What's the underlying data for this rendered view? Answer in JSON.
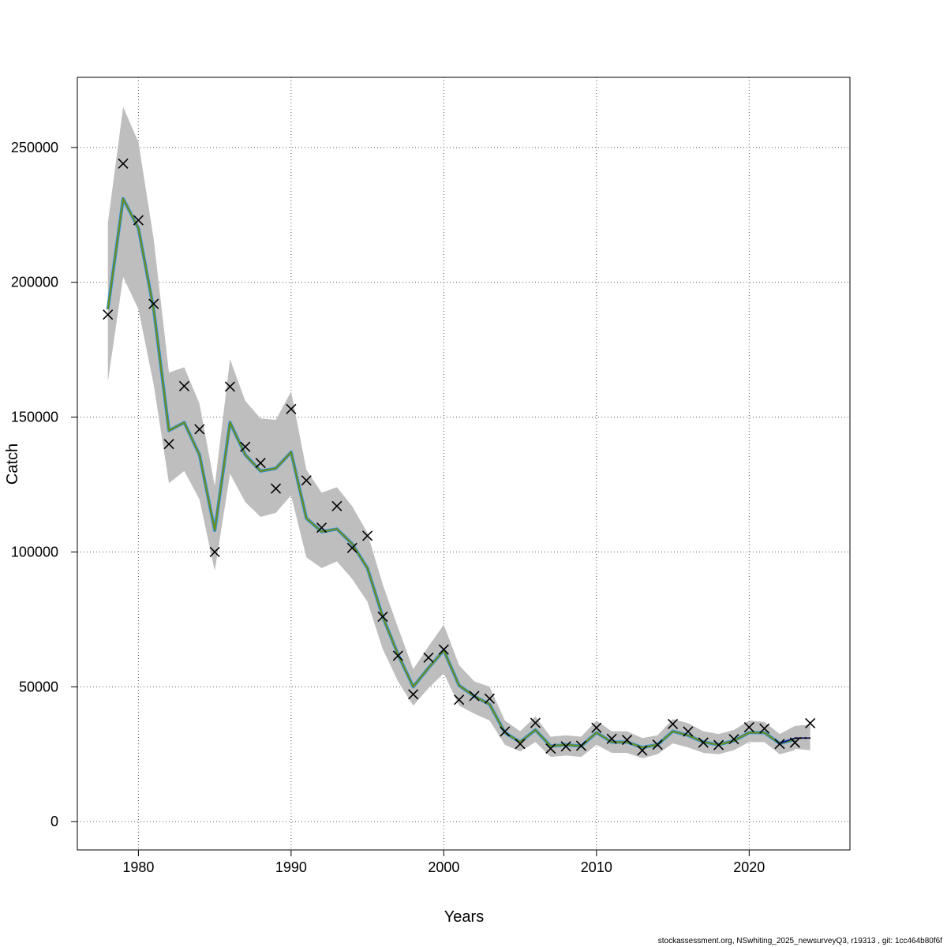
{
  "chart_data": {
    "type": "line",
    "xlabel": "Years",
    "ylabel": "Catch",
    "xlim": [
      1976,
      2026.6
    ],
    "ylim": [
      -10500,
      276000
    ],
    "x_ticks": [
      1980,
      1990,
      2000,
      2010,
      2020
    ],
    "y_ticks": [
      0,
      50000,
      100000,
      150000,
      200000,
      250000
    ],
    "grid": true,
    "years": [
      1978,
      1979,
      1980,
      1981,
      1982,
      1983,
      1984,
      1985,
      1986,
      1987,
      1988,
      1989,
      1990,
      1991,
      1992,
      1993,
      1994,
      1995,
      1996,
      1997,
      1998,
      1999,
      2000,
      2001,
      2002,
      2003,
      2004,
      2005,
      2006,
      2007,
      2008,
      2009,
      2010,
      2011,
      2012,
      2013,
      2014,
      2015,
      2016,
      2017,
      2018,
      2019,
      2020,
      2021,
      2022,
      2023,
      2024
    ],
    "observed": [
      188000,
      244000,
      223000,
      192000,
      140000,
      161500,
      145500,
      100000,
      161300,
      139000,
      133000,
      123500,
      153000,
      126500,
      109000,
      117000,
      101500,
      106000,
      76000,
      61500,
      47200,
      60800,
      63800,
      45200,
      46600,
      45600,
      33400,
      28800,
      36600,
      27100,
      27900,
      28100,
      34800,
      30700,
      30300,
      26400,
      28500,
      36200,
      33400,
      29300,
      28400,
      30600,
      35000,
      34500,
      28800,
      29300,
      36500
    ],
    "estimate_years": [
      1978,
      1979,
      1980,
      1981,
      1982,
      1983,
      1984,
      1985,
      1986,
      1987,
      1988,
      1989,
      1990,
      1991,
      1992,
      1993,
      1994,
      1995,
      1996,
      1997,
      1998,
      1999,
      2000,
      2001,
      2002,
      2003,
      2004,
      2005,
      2006,
      2007,
      2008,
      2009,
      2010,
      2011,
      2012,
      2013,
      2014,
      2015,
      2016,
      2017,
      2018,
      2019,
      2020,
      2021,
      2022,
      2023
    ],
    "estimate": [
      190000,
      231000,
      220000,
      190000,
      145000,
      148000,
      136000,
      108000,
      148000,
      136000,
      130000,
      131000,
      137000,
      112500,
      107500,
      108500,
      103000,
      94000,
      76000,
      62000,
      50000,
      57000,
      63500,
      50500,
      46500,
      43500,
      33000,
      29500,
      34000,
      28000,
      28500,
      28000,
      33000,
      29500,
      29500,
      27500,
      28500,
      33500,
      32000,
      29500,
      28500,
      30000,
      33000,
      33000,
      29000,
      30500
    ],
    "ci_lower": [
      163000,
      202000,
      190000,
      162000,
      125500,
      130000,
      119500,
      93000,
      129000,
      118500,
      113000,
      114500,
      121000,
      98000,
      94000,
      96500,
      90000,
      81500,
      64000,
      52000,
      43000,
      49500,
      55000,
      43000,
      40000,
      37500,
      28500,
      26000,
      29500,
      24000,
      24500,
      24000,
      28500,
      25500,
      25500,
      23500,
      25000,
      29000,
      27500,
      25500,
      25000,
      26500,
      29500,
      29500,
      25000,
      26500
    ],
    "ci_upper": [
      222000,
      265000,
      252000,
      216000,
      166500,
      168500,
      155000,
      124500,
      171500,
      156000,
      149500,
      149000,
      159500,
      130500,
      122000,
      124000,
      117000,
      107000,
      88000,
      72000,
      56500,
      65000,
      73000,
      58000,
      52000,
      50000,
      37500,
      33500,
      39000,
      31500,
      32000,
      31500,
      37500,
      33500,
      33500,
      31000,
      32000,
      38000,
      36500,
      33500,
      32500,
      34000,
      37500,
      37000,
      32500,
      35000
    ],
    "forecast_years": [
      2022,
      2023,
      2024
    ],
    "forecast": [
      29000,
      31000,
      31000
    ],
    "forecast_lower": [
      25000,
      27000,
      26500
    ],
    "forecast_upper": [
      32500,
      35500,
      36000
    ],
    "colors": {
      "band": "#bebebe",
      "estimate_green": "#6b8e23",
      "estimate_blue": "#1e90ff",
      "forecast_line": "#000080",
      "forecast_dash": "#000000",
      "grid": "#555555",
      "observed_marker": "#000000"
    }
  },
  "footer": {
    "text": "stockassessment.org, NSwhiting_2025_newsurveyQ3, r19313 , git: 1cc464b80f6f"
  }
}
